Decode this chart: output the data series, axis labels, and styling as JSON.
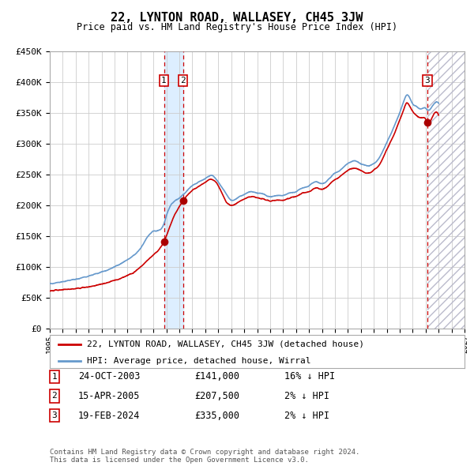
{
  "title": "22, LYNTON ROAD, WALLASEY, CH45 3JW",
  "subtitle": "Price paid vs. HM Land Registry's House Price Index (HPI)",
  "background_color": "#ffffff",
  "plot_background": "#ffffff",
  "grid_color": "#cccccc",
  "hpi_line_color": "#6699cc",
  "price_line_color": "#cc0000",
  "sale_marker_color": "#aa0000",
  "ylim": [
    0,
    450000
  ],
  "yticks": [
    0,
    50000,
    100000,
    150000,
    200000,
    250000,
    300000,
    350000,
    400000,
    450000
  ],
  "ytick_labels": [
    "£0",
    "£50K",
    "£100K",
    "£150K",
    "£200K",
    "£250K",
    "£300K",
    "£350K",
    "£400K",
    "£450K"
  ],
  "xlim_start": 1995.0,
  "xlim_end": 2027.0,
  "xtick_years": [
    1995,
    1996,
    1997,
    1998,
    1999,
    2000,
    2001,
    2002,
    2003,
    2004,
    2005,
    2006,
    2007,
    2008,
    2009,
    2010,
    2011,
    2012,
    2013,
    2014,
    2015,
    2016,
    2017,
    2018,
    2019,
    2020,
    2021,
    2022,
    2023,
    2024,
    2025,
    2026,
    2027
  ],
  "sale1_x": 2003.81,
  "sale1_y": 141000,
  "sale1_label": "1",
  "sale2_x": 2005.29,
  "sale2_y": 207500,
  "sale2_label": "2",
  "sale3_x": 2024.13,
  "sale3_y": 335000,
  "sale3_label": "3",
  "shade_color": "#ddeeff",
  "legend_label_price": "22, LYNTON ROAD, WALLASEY, CH45 3JW (detached house)",
  "legend_label_hpi": "HPI: Average price, detached house, Wirral",
  "table_rows": [
    {
      "num": "1",
      "date": "24-OCT-2003",
      "price": "£141,000",
      "change": "16% ↓ HPI"
    },
    {
      "num": "2",
      "date": "15-APR-2005",
      "price": "£207,500",
      "change": "2% ↓ HPI"
    },
    {
      "num": "3",
      "date": "19-FEB-2024",
      "price": "£335,000",
      "change": "2% ↓ HPI"
    }
  ],
  "footnote": "Contains HM Land Registry data © Crown copyright and database right 2024.\nThis data is licensed under the Open Government Licence v3.0.",
  "future_shade_start": 2024.13
}
